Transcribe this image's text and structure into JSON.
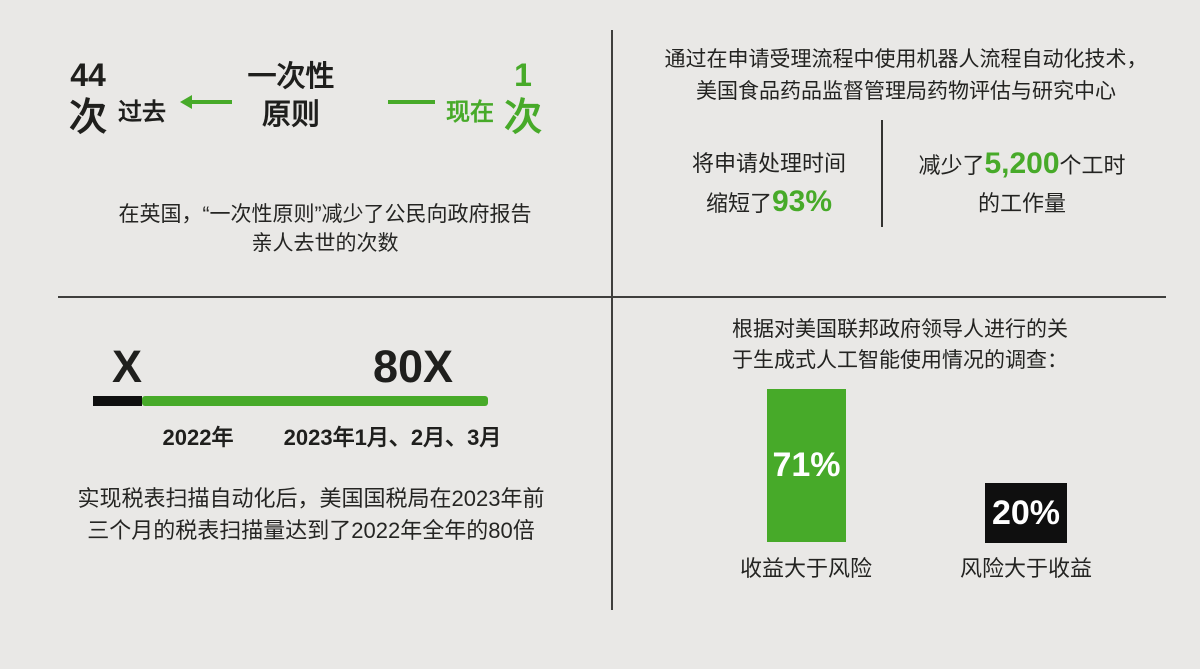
{
  "colors": {
    "green": "#47aa29",
    "ink": "#1f1f1d",
    "bg": "#e9e8e6",
    "divider": "#3f3f3d",
    "white": "#ffffff",
    "barblack": "#0f0f0f"
  },
  "uk": {
    "past_value": "44",
    "past_unit": "次",
    "past_label": "过去",
    "principle": "一次性\n原则",
    "now_label": "现在",
    "now_value": "1",
    "now_unit": "次",
    "caption": "在英国，“一次性原则”减少了公民向政府报告\n亲人去世的次数"
  },
  "fda": {
    "header": "通过在申请受理流程中使用机器人流程自动化技术，\n美国食品药品监督管理局药物评估与研究中心",
    "stat_time": {
      "line1": "将申请处理时间",
      "line2_prefix": "缩短了",
      "line2_value": "93%"
    },
    "stat_hours": {
      "line1_prefix": "减少了",
      "line1_value": "5,200",
      "line1_suffix": "个工时",
      "line2": "的工作量"
    }
  },
  "irs": {
    "baseline_label": "X",
    "multiple_label": "80X",
    "bar_2022_label": "2022年",
    "bar_2023_label": "2023年1月、2月、3月",
    "caption": "实现税表扫描自动化后，美国国税局在2023年前\n三个月的税表扫描量达到了2022年全年的80倍"
  },
  "survey": {
    "header": "根据对美国联邦政府领导人进行的关\n于生成式人工智能使用情况的调查：",
    "bars": [
      {
        "value": "71%",
        "label": "收益大于风险"
      },
      {
        "value": "20%",
        "label": "风险大于收益"
      }
    ]
  },
  "chart_data": [
    {
      "type": "bar",
      "title": "英国“一次性原则”：公民向政府报告亲人去世的次数",
      "categories": [
        "过去",
        "现在"
      ],
      "values": [
        44,
        1
      ],
      "unit": "次",
      "layout": "pictogram-comparison",
      "colors": [
        "#1f1f1d",
        "#47aa29"
      ]
    },
    {
      "type": "bar",
      "title": "美国国税局税表扫描量（税表扫描自动化后）",
      "categories": [
        "2022年",
        "2023年1月、2月、3月"
      ],
      "values": [
        1,
        80
      ],
      "unit": "X",
      "layout": "horizontal-segmented-bar",
      "colors": [
        "#0f0f0f",
        "#47aa29"
      ],
      "data_labels": [
        "X",
        "80X"
      ]
    },
    {
      "type": "bar",
      "title": "根据对美国联邦政府领导人进行的关于生成式人工智能使用情况的调查",
      "categories": [
        "收益大于风险",
        "风险大于收益"
      ],
      "values": [
        71,
        20
      ],
      "unit": "%",
      "layout": "vertical-bars-labels-inside",
      "colors": [
        "#47aa29",
        "#0f0f0f"
      ],
      "data_labels": [
        "71%",
        "20%"
      ]
    }
  ]
}
